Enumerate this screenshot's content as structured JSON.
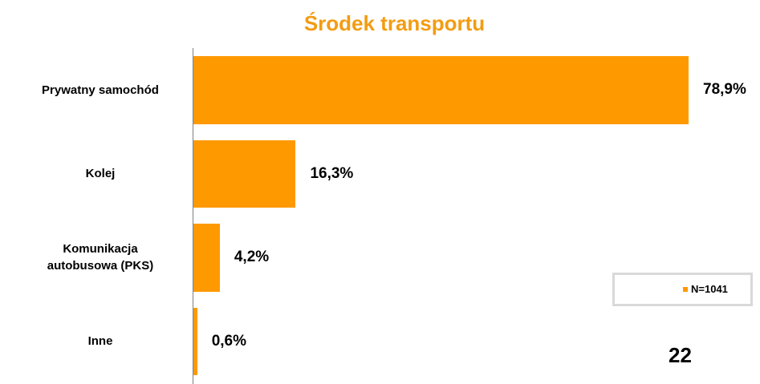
{
  "chart_data": {
    "type": "bar",
    "orientation": "horizontal",
    "title": "Środek transportu",
    "categories": [
      "Prywatny samochód",
      "Kolej",
      "Komunikacja autobusowa (PKS)",
      "Inne"
    ],
    "series": [
      {
        "name": "N=1041",
        "color": "#ff9900",
        "values": [
          78.9,
          16.3,
          4.2,
          0.6
        ],
        "value_labels": [
          "78,9%",
          "16,3%",
          "4,2%",
          "0,6%"
        ]
      }
    ],
    "legend": "right",
    "annotation": "22"
  }
}
